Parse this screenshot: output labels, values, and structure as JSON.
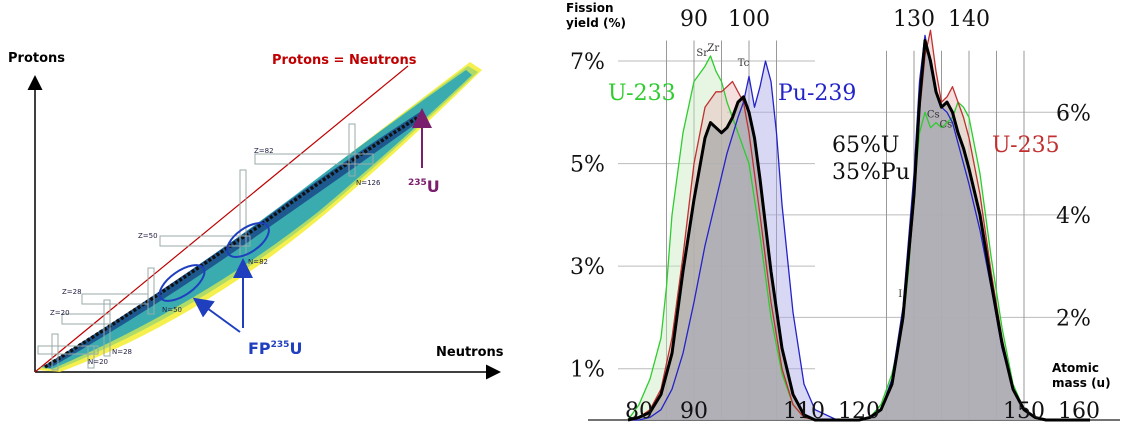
{
  "left_chart": {
    "y_axis_label": "Protons",
    "x_axis_label": "Neutrons",
    "diagonal_label": "Protons = Neutrons",
    "magic_labels": {
      "z82": "Z=82",
      "z50": "Z=50",
      "z28": "Z=28",
      "z20": "Z=20",
      "n126": "N=126",
      "n82": "N=82",
      "n50": "N=50",
      "n28": "N=28",
      "n20": "N=20"
    },
    "u235_mass": "235",
    "u235_symbol": "U",
    "fp_prefix": "FP",
    "fp_mass": "235",
    "fp_symbol": "U",
    "colors": {
      "diagonal": "#c00000",
      "arrow_purple": "#7a1f6e",
      "arrow_blue": "#1f3fbf",
      "ellipse": "#1f3fbf"
    }
  },
  "chart_data": {
    "type": "area",
    "title": "",
    "ylabel": "Fission\nyield (%)",
    "xlabel": "Atomic\nmass (u)",
    "ylabel_line1": "Fission",
    "ylabel_line2": "yield (%)",
    "xlabel_line1": "Atomic",
    "xlabel_line2": "mass (u)",
    "top_ticks": [
      "90",
      "100",
      "130",
      "140"
    ],
    "top_tick_values": [
      90,
      100,
      130,
      140
    ],
    "bottom_ticks": [
      "80",
      "90",
      "110",
      "120",
      "150",
      "160"
    ],
    "bottom_tick_values": [
      80,
      90,
      110,
      120,
      150,
      160
    ],
    "left_yticks": [
      "7%",
      "5%",
      "3%",
      "1%"
    ],
    "left_ytick_values": [
      7,
      5,
      3,
      1
    ],
    "right_yticks": [
      "6%",
      "4%",
      "2%"
    ],
    "right_ytick_values": [
      6,
      4,
      2
    ],
    "xlim": [
      78,
      162
    ],
    "ylim": [
      0,
      7.8
    ],
    "element_marks": [
      {
        "label": "Sr",
        "x": 91.5,
        "y": 7.1
      },
      {
        "label": "Zr",
        "x": 93.5,
        "y": 7.2
      },
      {
        "label": "Tc",
        "x": 99,
        "y": 6.9
      },
      {
        "label": "Cs",
        "x": 133.5,
        "y": 5.9
      },
      {
        "label": "Cs",
        "x": 135.8,
        "y": 5.7
      },
      {
        "label": "I",
        "x": 127.5,
        "y": 2.4
      }
    ],
    "mix_label_1": "65%U",
    "mix_label_2": "35%Pu",
    "series": [
      {
        "name": "U-233",
        "color": "#2ecc2e",
        "x": [
          78,
          80,
          82,
          84,
          85,
          86,
          88,
          90,
          92,
          93,
          94,
          95,
          96,
          98,
          100,
          102,
          104,
          106,
          108,
          110,
          112,
          116,
          120,
          122,
          124,
          126,
          128,
          129,
          130,
          131,
          132,
          133,
          134,
          135,
          136,
          137,
          138,
          139,
          140,
          142,
          144,
          146,
          148,
          150,
          152,
          154,
          156,
          158,
          160,
          162
        ],
        "y": [
          0,
          0.3,
          0.8,
          1.6,
          2.6,
          4.0,
          5.6,
          6.6,
          6.9,
          7.1,
          6.8,
          6.6,
          6.2,
          5.6,
          5.0,
          3.6,
          2.0,
          0.9,
          0.3,
          0.05,
          0,
          0,
          0,
          0.05,
          0.3,
          0.9,
          1.9,
          2.9,
          4.4,
          5.6,
          6.0,
          5.7,
          5.8,
          5.7,
          5.8,
          5.9,
          6.2,
          6.1,
          5.9,
          4.8,
          3.2,
          1.8,
          0.7,
          0.2,
          0.05,
          0,
          0,
          0,
          0,
          0
        ]
      },
      {
        "name": "U-235",
        "color": "#c03030",
        "x": [
          78,
          80,
          82,
          84,
          86,
          88,
          90,
          92,
          94,
          95,
          96,
          97,
          98,
          99,
          100,
          102,
          104,
          106,
          108,
          110,
          112,
          116,
          120,
          122,
          124,
          126,
          128,
          130,
          131,
          132,
          133,
          134,
          135,
          136,
          137,
          138,
          139,
          140,
          142,
          144,
          146,
          148,
          150,
          152,
          154,
          156,
          158,
          160,
          162
        ],
        "y": [
          0,
          0.05,
          0.2,
          0.6,
          1.6,
          3.2,
          5.0,
          6.1,
          6.4,
          6.4,
          6.5,
          6.6,
          6.4,
          6.2,
          5.6,
          4.0,
          2.3,
          1.0,
          0.3,
          0.05,
          0,
          0,
          0,
          0.05,
          0.2,
          0.7,
          1.9,
          4.2,
          6.0,
          7.1,
          7.6,
          6.8,
          6.2,
          6.3,
          6.5,
          6.2,
          5.9,
          5.5,
          4.4,
          2.9,
          1.6,
          0.6,
          0.2,
          0.05,
          0,
          0,
          0,
          0,
          0
        ]
      },
      {
        "name": "Pu-239",
        "color": "#2323c8",
        "x": [
          78,
          80,
          82,
          84,
          86,
          88,
          90,
          92,
          94,
          96,
          98,
          99,
          100,
          101,
          102,
          103,
          104,
          105,
          106,
          108,
          110,
          112,
          116,
          120,
          122,
          124,
          126,
          128,
          130,
          131,
          132,
          133,
          134,
          135,
          136,
          137,
          138,
          139,
          140,
          142,
          144,
          146,
          148,
          150,
          152,
          154,
          156,
          158,
          160,
          162
        ],
        "y": [
          0,
          0,
          0.05,
          0.2,
          0.6,
          1.3,
          2.3,
          3.4,
          4.3,
          5.2,
          5.9,
          6.2,
          6.7,
          6.1,
          6.5,
          7.0,
          6.6,
          5.6,
          4.2,
          2.1,
          0.7,
          0.2,
          0,
          0,
          0.05,
          0.2,
          0.8,
          2.2,
          4.8,
          6.6,
          7.5,
          6.9,
          6.4,
          6.1,
          6.0,
          5.8,
          5.4,
          5.0,
          4.6,
          3.7,
          2.6,
          1.4,
          0.6,
          0.2,
          0.05,
          0,
          0,
          0,
          0,
          0
        ]
      },
      {
        "name": "65%U 35%Pu",
        "color": "#000000",
        "x": [
          78,
          80,
          82,
          84,
          86,
          87,
          88,
          90,
          92,
          93,
          94,
          95,
          96,
          97,
          98,
          99,
          100,
          101,
          102,
          104,
          106,
          108,
          110,
          112,
          116,
          120,
          122,
          124,
          126,
          128,
          130,
          131,
          132,
          133,
          134,
          135,
          136,
          137,
          138,
          139,
          140,
          142,
          144,
          146,
          148,
          150,
          152,
          154,
          156,
          158,
          160,
          162
        ],
        "y": [
          0,
          0.05,
          0.15,
          0.5,
          1.3,
          2.1,
          2.9,
          4.3,
          5.5,
          5.8,
          5.7,
          5.6,
          5.7,
          5.9,
          6.2,
          6.3,
          6.0,
          5.5,
          4.7,
          2.9,
          1.4,
          0.5,
          0.1,
          0,
          0,
          0,
          0.05,
          0.2,
          0.7,
          2.0,
          4.4,
          6.2,
          7.4,
          7.0,
          6.4,
          6.1,
          6.2,
          6.0,
          5.6,
          5.3,
          4.9,
          4.0,
          2.7,
          1.5,
          0.6,
          0.2,
          0.05,
          0,
          0,
          0,
          0,
          0
        ]
      }
    ]
  }
}
